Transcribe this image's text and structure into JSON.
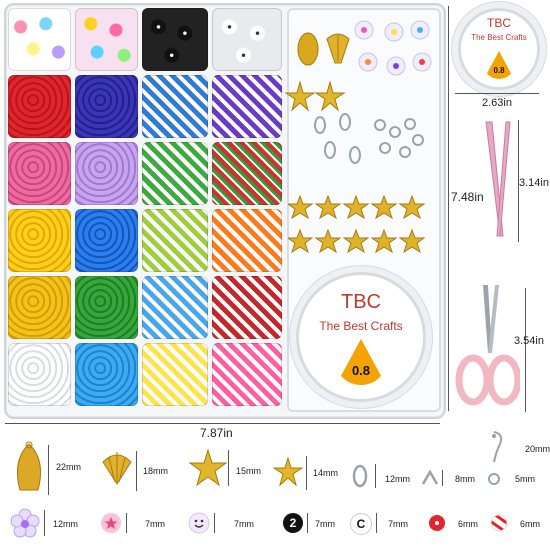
{
  "spool_large": {
    "brand": "TBC",
    "tagline": "The Best Crafts",
    "size": "0.8"
  },
  "spool_small": {
    "brand": "TBC",
    "tagline": "The Best Crafts",
    "size": "0.8"
  },
  "dimensions": {
    "box_width": "7.87in",
    "box_height": "7.48in",
    "spool_width": "2.63in",
    "tweezer_length": "3.14in",
    "scissors_length": "3.54in",
    "earring_hook": "20mm"
  },
  "legend": [
    {
      "name": "shell-charm",
      "size": "22mm"
    },
    {
      "name": "scallop-charm",
      "size": "18mm"
    },
    {
      "name": "starfish-charm",
      "size": "15mm"
    },
    {
      "name": "star-charm",
      "size": "14mm"
    },
    {
      "name": "lobster-clasp",
      "size": "12mm"
    },
    {
      "name": "crimp-cover",
      "size": "8mm"
    },
    {
      "name": "jump-ring",
      "size": "5mm"
    },
    {
      "name": "flower-bead",
      "size": "12mm"
    },
    {
      "name": "star-bead",
      "size": "7mm"
    },
    {
      "name": "smiley-bead",
      "size": "7mm"
    },
    {
      "name": "number-bead",
      "size": "7mm"
    },
    {
      "name": "letter-bead",
      "size": "7mm"
    },
    {
      "name": "red-heishi",
      "size": "6mm"
    },
    {
      "name": "striped-bead",
      "size": "6mm"
    }
  ],
  "legend_glyphs": {
    "number": "2",
    "letter": "C"
  },
  "colors": {
    "accent": "#f5a300",
    "brand": "#c0392b",
    "tweezer": "#e8a7c4",
    "scissors": "#f2b8c2"
  }
}
